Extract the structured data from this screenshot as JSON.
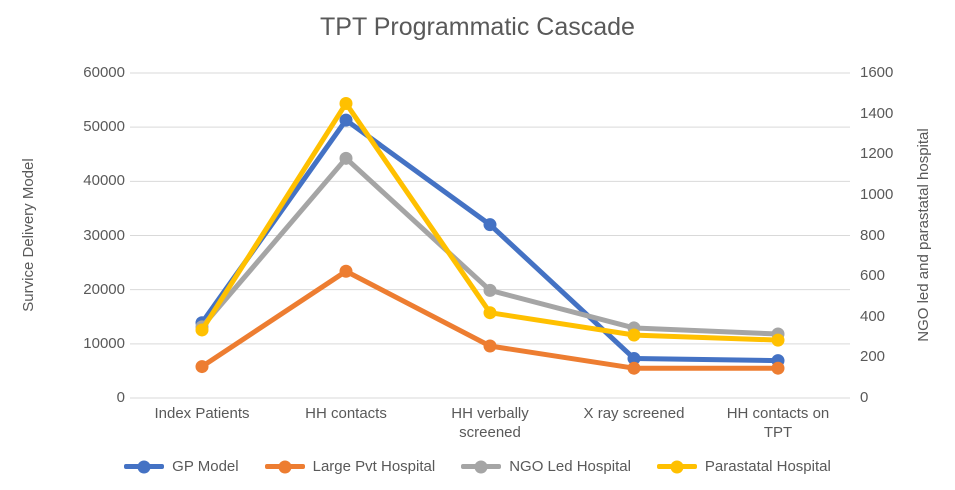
{
  "colors": {
    "gridline": "#d9d9d9",
    "text": "#595959",
    "gp_model": "#4472c4",
    "large_pvt_hospital": "#ed7d31",
    "ngo_led_hospital": "#a5a5a5",
    "parastatal_hospital": "#ffc000"
  },
  "chart_data": {
    "type": "line",
    "title": "TPT Programmatic Cascade",
    "categories": [
      "Index Patients",
      "HH contacts",
      "HH verbally screened",
      "X ray screened",
      "HH contacts on TPT"
    ],
    "series": [
      {
        "name": "GP Model",
        "axis": "left",
        "color": "#4472c4",
        "values": [
          13900,
          51300,
          32000,
          7300,
          6900
        ]
      },
      {
        "name": "Large Pvt Hospital",
        "axis": "left",
        "color": "#ed7d31",
        "values": [
          5800,
          23400,
          9600,
          5500,
          5500
        ]
      },
      {
        "name": "NGO Led Hospital",
        "axis": "right",
        "color": "#a5a5a5",
        "values": [
          350,
          1180,
          530,
          345,
          315
        ]
      },
      {
        "name": "Parastatal Hospital",
        "axis": "right",
        "color": "#ffc000",
        "values": [
          335,
          1450,
          420,
          310,
          285
        ]
      }
    ],
    "left_axis": {
      "label": "Survice Delivery Model",
      "range": [
        0,
        60000
      ],
      "tick_step": 10000
    },
    "right_axis": {
      "label": "NGO led and parastatal hospital",
      "range": [
        0,
        1600
      ],
      "tick_step": 200
    },
    "grid": true,
    "legend_position": "bottom",
    "marker": "circle"
  }
}
